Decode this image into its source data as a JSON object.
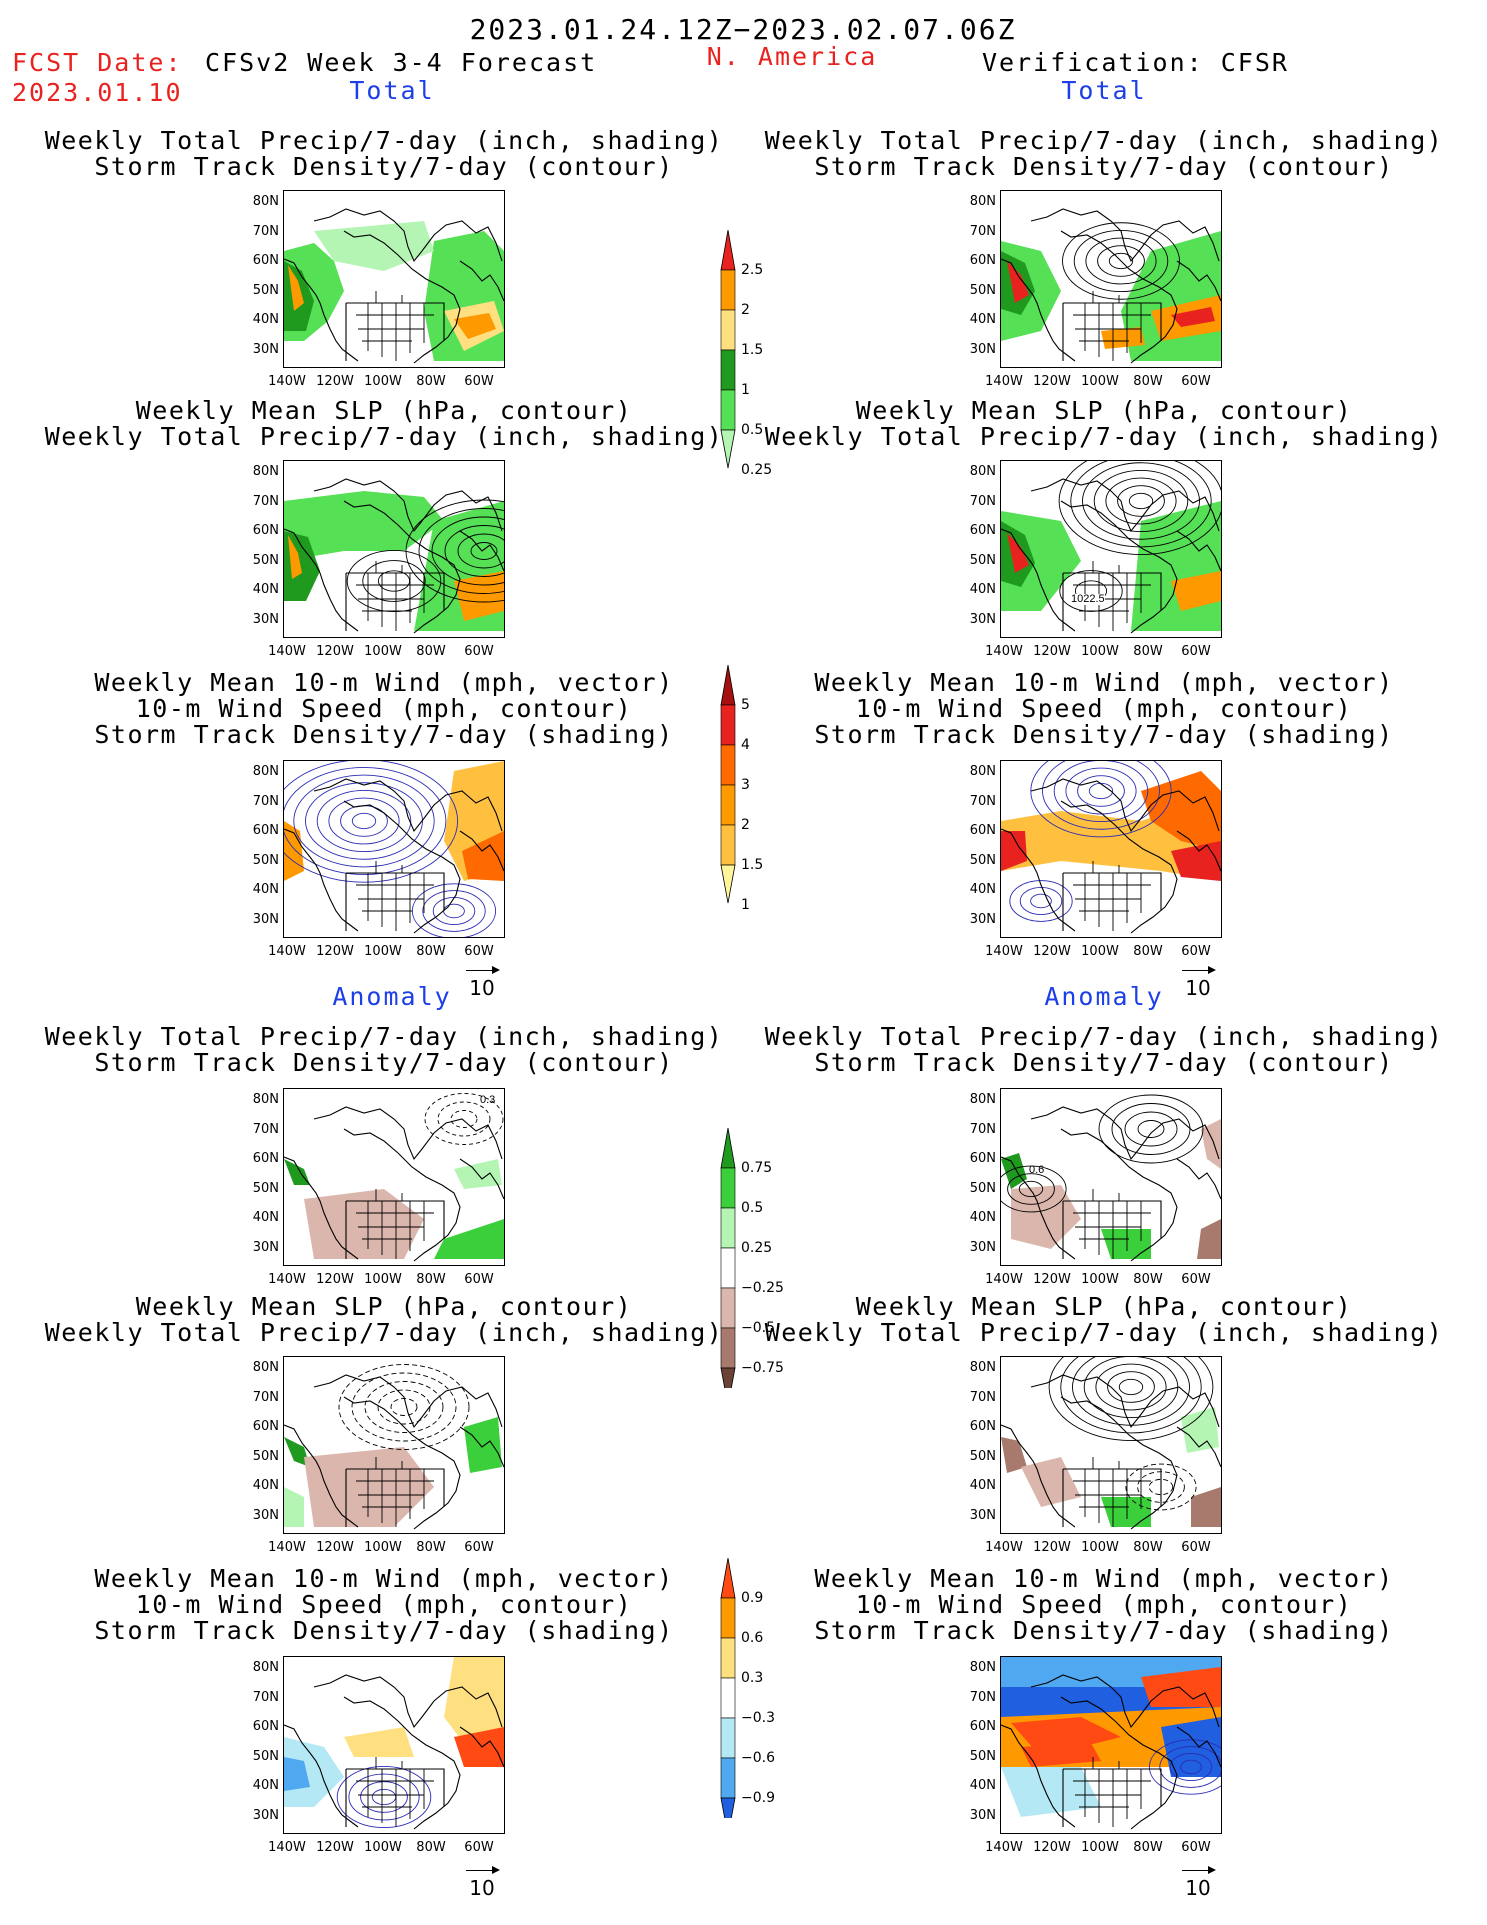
{
  "header": {
    "period": "2023.01.24.12Z−2023.02.07.06Z",
    "fcst_label": "FCST Date:",
    "fcst_date": "2023.01.10",
    "model_title": "CFSv2 Week 3-4 Forecast",
    "region": "N. America",
    "verification": "Verification: CFSR"
  },
  "sections": {
    "total_left": "Total",
    "total_right": "Total",
    "anomaly_left": "Anomaly",
    "anomaly_right": "Anomaly"
  },
  "titles": {
    "precip_storm": [
      "Weekly Total Precip/7-day (inch, shading)",
      "Storm Track Density/7-day (contour)"
    ],
    "slp_precip": [
      "Weekly Mean SLP (hPa, contour)",
      "Weekly Total Precip/7-day (inch, shading)"
    ],
    "wind": [
      "Weekly Mean 10-m Wind (mph, vector)",
      "10-m Wind Speed (mph, contour)",
      "Storm Track Density/7-day (shading)"
    ]
  },
  "axes": {
    "lat_labels": [
      "80N",
      "70N",
      "60N",
      "50N",
      "40N",
      "30N"
    ],
    "lon_labels": [
      "140W",
      "120W",
      "100W",
      "80W",
      "60W"
    ]
  },
  "vector_ref": "10",
  "panel_annotations": {
    "verif_slp": "1022.5",
    "fcst_anom_storm": "0.3",
    "verif_anom_storm": "0.6"
  },
  "colorbars": {
    "precip_total": {
      "labels": [
        "2.5",
        "2",
        "1.5",
        "1",
        "0.5",
        "0.25"
      ],
      "colors": [
        "#e8231f",
        "#ff9900",
        "#ffe080",
        "#1f9a1f",
        "#55e055",
        "#b4f5b4"
      ]
    },
    "storm_total": {
      "labels": [
        "5",
        "4",
        "3",
        "2",
        "1.5",
        "1"
      ],
      "colors": [
        "#a50f0f",
        "#e8231f",
        "#ff6a00",
        "#ff9900",
        "#ffc040",
        "#fff59a"
      ]
    },
    "precip_anom": {
      "labels": [
        "0.75",
        "0.5",
        "0.25",
        "−0.25",
        "−0.5",
        "−0.75"
      ],
      "colors": [
        "#1f9a1f",
        "#3ccf3c",
        "#b4f5b4",
        "#ffffff",
        "#dbb6ac",
        "#a87a6e",
        "#6a4236"
      ]
    },
    "storm_anom": {
      "labels": [
        "0.9",
        "0.6",
        "0.3",
        "−0.3",
        "−0.6",
        "−0.9"
      ],
      "colors": [
        "#ff4a14",
        "#ff9900",
        "#ffe080",
        "#ffffff",
        "#b4e8f5",
        "#4fa8f0",
        "#1f5fe0"
      ]
    }
  }
}
